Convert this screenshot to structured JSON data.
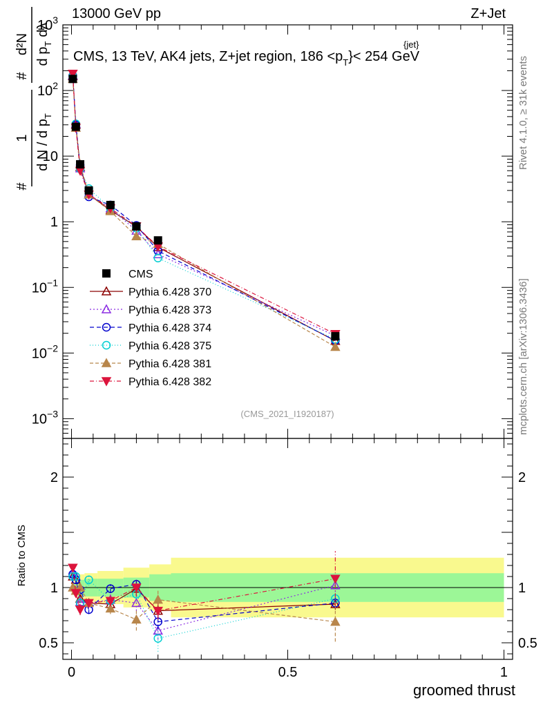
{
  "header": {
    "left": "13000 GeV pp",
    "right": "Z+Jet"
  },
  "side_labels": {
    "rivet": "Rivet 4.1.0, ≥ 31k events",
    "mcplots": "mcplots.cern.ch [arXiv:1306.3436]"
  },
  "chart_data": {
    "type": "line",
    "title": "CMS, 13 TeV, AK4 jets, Z+jet region, 186 <p_T^{jet}< 254 GeV",
    "title_parts": {
      "prefix": "CMS, 13 TeV, AK4 jets, Z+jet region, 186 <p",
      "sup": "{jet}",
      "sub": "T",
      "suffix": "}< 254 GeV"
    },
    "analysis_id": "(CMS_2021_I1920187)",
    "xlabel": "groomed thrust",
    "ylabel_main": {
      "one": "1",
      "dN": "d N / d p",
      "dN_sub": "T",
      "d2N": "d²N",
      "dpT": "d p",
      "dpT_sub": "T",
      "dlambda": "dλ",
      "hash1": "#",
      "hash2": "#"
    },
    "ylabel_ratio": "Ratio to CMS",
    "xlim": [
      -0.02,
      1.02
    ],
    "ylim_main": [
      0.0005,
      1000
    ],
    "ylim_ratio": [
      0.35,
      2.35
    ],
    "x_ticks": [
      {
        "value": 0,
        "label": "0"
      },
      {
        "value": 0.5,
        "label": "0.5"
      },
      {
        "value": 1,
        "label": "1"
      }
    ],
    "y_ticks_main": [
      {
        "value": 0.001,
        "base": "10",
        "exp": "−3"
      },
      {
        "value": 0.01,
        "base": "10",
        "exp": "−2"
      },
      {
        "value": 0.1,
        "base": "10",
        "exp": "−1"
      },
      {
        "value": 1,
        "base": "1",
        "exp": ""
      },
      {
        "value": 10,
        "base": "10",
        "exp": ""
      },
      {
        "value": 100,
        "base": "10",
        "exp": "2"
      },
      {
        "value": 1000,
        "base": "10",
        "exp": "3"
      }
    ],
    "y_ticks_ratio": [
      {
        "value": 0.5,
        "label": "0.5"
      },
      {
        "value": 1,
        "label": "1"
      },
      {
        "value": 2,
        "label": "2"
      }
    ],
    "x": [
      0.003,
      0.01,
      0.02,
      0.04,
      0.09,
      0.15,
      0.2,
      0.61
    ],
    "data": {
      "name": "CMS",
      "color": "#000000",
      "values": [
        150,
        28,
        7.5,
        3.0,
        1.8,
        0.85,
        0.52,
        0.018
      ]
    },
    "band_edges": [
      0.0,
      0.006,
      0.015,
      0.03,
      0.06,
      0.12,
      0.18,
      0.23,
      1.0
    ],
    "band_stat": [
      0.02,
      0.04,
      0.07,
      0.08,
      0.08,
      0.09,
      0.12,
      0.13
    ],
    "band_total": [
      0.05,
      0.08,
      0.12,
      0.13,
      0.15,
      0.18,
      0.21,
      0.27
    ],
    "band_colors": {
      "inner": "#9cf797",
      "outer": "#f9f98e"
    },
    "series": [
      {
        "name": "Pythia 6.428 370",
        "color": "#8b0000",
        "marker": "triangle-up-open",
        "dash": "",
        "values": [
          165,
          30,
          6.8,
          2.6,
          1.5,
          0.84,
          0.41,
          0.0153
        ],
        "ratio": [
          1.1,
          1.07,
          0.9,
          0.86,
          0.85,
          0.99,
          0.79,
          0.85
        ],
        "ratio_err": [
          0.03,
          0.03,
          0.04,
          0.04,
          0.05,
          0.07,
          0.08,
          0.05
        ]
      },
      {
        "name": "Pythia 6.428 373",
        "color": "#8a2be2",
        "marker": "triangle-up-open",
        "dash": "2,3",
        "values": [
          170,
          31,
          6.5,
          2.6,
          1.6,
          0.73,
          0.32,
          0.0183
        ],
        "ratio": [
          1.13,
          1.1,
          0.87,
          0.86,
          0.89,
          0.86,
          0.61,
          1.02
        ],
        "ratio_err": [
          0.03,
          0.04,
          0.04,
          0.04,
          0.05,
          0.07,
          0.08,
          0.06
        ]
      },
      {
        "name": "Pythia 6.428 374",
        "color": "#0000cd",
        "marker": "circle-open",
        "dash": "6,4",
        "values": [
          168,
          30,
          7.3,
          2.4,
          1.8,
          0.88,
          0.36,
          0.0155
        ],
        "ratio": [
          1.12,
          1.07,
          0.98,
          0.8,
          0.99,
          1.03,
          0.69,
          0.86
        ],
        "ratio_err": [
          0.03,
          0.03,
          0.04,
          0.04,
          0.04,
          0.06,
          0.07,
          0.05
        ]
      },
      {
        "name": "Pythia 6.428 375",
        "color": "#00ced1",
        "marker": "circle-open",
        "dash": "1,3",
        "values": [
          165,
          31,
          6.4,
          3.2,
          1.6,
          0.8,
          0.28,
          0.0162
        ],
        "ratio": [
          1.1,
          1.1,
          0.86,
          1.07,
          0.88,
          0.94,
          0.54,
          0.9
        ],
        "ratio_err": [
          0.03,
          0.03,
          0.04,
          0.05,
          0.05,
          0.07,
          0.12,
          0.06
        ]
      },
      {
        "name": "Pythia 6.428 381",
        "color": "#b8864b",
        "marker": "triangle-up-filled",
        "dash": "5,3",
        "values": [
          150,
          27,
          7.5,
          2.6,
          1.45,
          0.6,
          0.46,
          0.0124
        ],
        "ratio": [
          1.0,
          0.97,
          1.0,
          0.86,
          0.81,
          0.71,
          0.89,
          0.69
        ],
        "ratio_err": [
          0.03,
          0.03,
          0.04,
          0.04,
          0.05,
          0.1,
          0.1,
          0.18
        ]
      },
      {
        "name": "Pythia 6.428 382",
        "color": "#dc143c",
        "marker": "triangle-down-filled",
        "dash": "6,3,1,3",
        "values": [
          180,
          27,
          6.0,
          2.6,
          1.6,
          0.85,
          0.42,
          0.0195
        ],
        "ratio": [
          1.18,
          0.95,
          0.8,
          0.86,
          0.88,
          1.0,
          0.79,
          1.08
        ],
        "ratio_err": [
          0.03,
          0.03,
          0.05,
          0.04,
          0.05,
          0.08,
          0.08,
          0.25
        ]
      }
    ]
  }
}
